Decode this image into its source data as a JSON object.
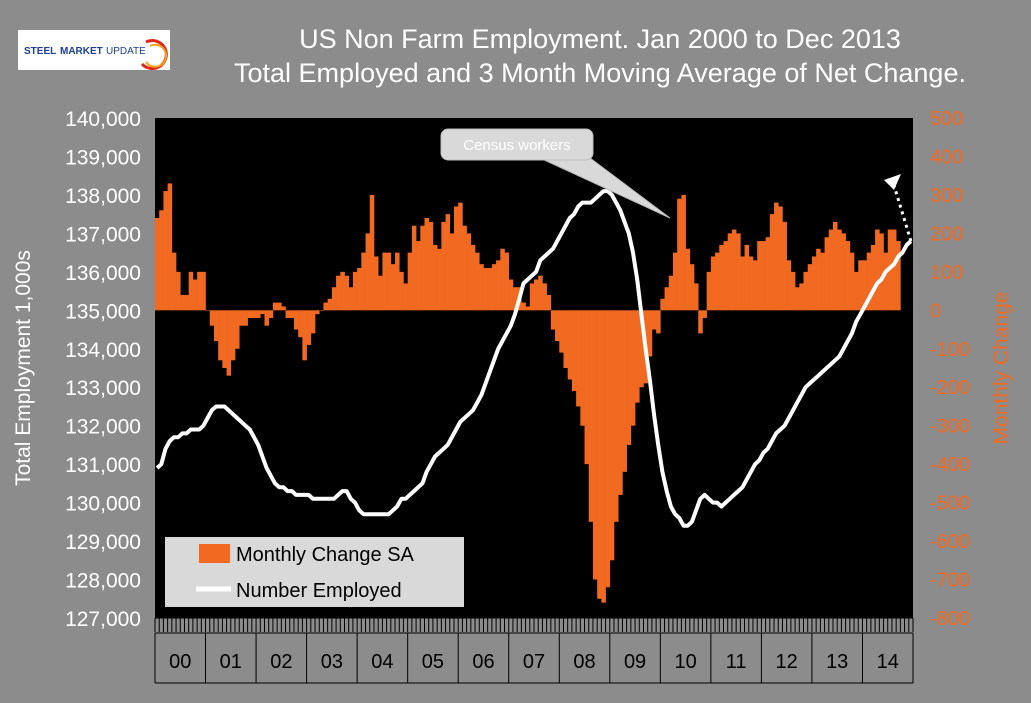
{
  "logo": {
    "text": "STEEL MARKET UPDATE"
  },
  "chart_data": {
    "type": "bar+line",
    "title": "US Non Farm Employment. Jan 2000 to Dec 2013",
    "subtitle": "Total Employed and 3 Month Moving Average of Net Change.",
    "ylabel_left": "Total Employment 1,000s",
    "ylabel_right": "Monthly Change",
    "ylim_left": [
      127000,
      140000
    ],
    "ylim_right": [
      -800,
      500
    ],
    "yticks_left": [
      "127,000",
      "128,000",
      "129,000",
      "130,000",
      "131,000",
      "132,000",
      "133,000",
      "134,000",
      "135,000",
      "136,000",
      "137,000",
      "138,000",
      "139,000",
      "140,000"
    ],
    "yticks_right": [
      "-800",
      "-700",
      "-600",
      "-500",
      "-400",
      "-300",
      "-200",
      "-100",
      "0",
      "100",
      "200",
      "300",
      "400",
      "500"
    ],
    "xticks": [
      "00",
      "01",
      "02",
      "03",
      "04",
      "05",
      "06",
      "07",
      "08",
      "09",
      "10",
      "11",
      "12",
      "13",
      "14"
    ],
    "legend": {
      "bar_label": "Monthly Change SA",
      "line_label": "Number Employed",
      "placement": "bottom-left"
    },
    "annotation": {
      "text": "Census workers"
    },
    "colors": {
      "bars": "#f26a21",
      "line": "#ffffff",
      "plot_bg": "#000000",
      "page_bg": "#8c8c8c",
      "right_axis": "#f26a21"
    },
    "series": [
      {
        "name": "Monthly Change SA",
        "axis": "right",
        "values": [
          240,
          260,
          310,
          330,
          150,
          100,
          40,
          40,
          100,
          80,
          100,
          100,
          0,
          -40,
          -80,
          -130,
          -150,
          -170,
          -130,
          -100,
          -40,
          -40,
          -20,
          -20,
          -20,
          -10,
          -40,
          -20,
          20,
          20,
          10,
          -20,
          -20,
          -50,
          -70,
          -130,
          -90,
          -60,
          -10,
          0,
          20,
          30,
          60,
          90,
          100,
          90,
          60,
          100,
          110,
          150,
          200,
          300,
          140,
          90,
          150,
          150,
          120,
          150,
          100,
          70,
          150,
          220,
          180,
          220,
          240,
          230,
          170,
          160,
          230,
          250,
          200,
          270,
          280,
          220,
          200,
          170,
          150,
          120,
          110,
          110,
          120,
          130,
          160,
          150,
          80,
          60,
          60,
          20,
          10,
          70,
          80,
          90,
          70,
          40,
          -50,
          -80,
          -110,
          -150,
          -180,
          -210,
          -250,
          -300,
          -400,
          -550,
          -700,
          -750,
          -760,
          -720,
          -650,
          -550,
          -480,
          -420,
          -350,
          -300,
          -240,
          -200,
          -190,
          -120,
          -50,
          -60,
          30,
          60,
          90,
          150,
          290,
          300,
          160,
          120,
          70,
          -60,
          -20,
          100,
          140,
          150,
          170,
          180,
          200,
          210,
          200,
          140,
          170,
          140,
          130,
          180,
          180,
          190,
          250,
          280,
          270,
          230,
          130,
          100,
          60,
          70,
          100,
          120,
          140,
          160,
          150,
          190,
          210,
          230,
          210,
          200,
          180,
          150,
          100,
          130,
          130,
          150,
          170,
          210,
          200,
          150,
          210,
          210,
          180
        ]
      },
      {
        "name": "Number Employed",
        "axis": "left",
        "values": [
          130900,
          131000,
          131400,
          131600,
          131700,
          131700,
          131800,
          131800,
          131900,
          131900,
          131900,
          132000,
          132200,
          132400,
          132500,
          132500,
          132500,
          132400,
          132300,
          132200,
          132100,
          132000,
          131900,
          131700,
          131500,
          131200,
          130900,
          130700,
          130500,
          130400,
          130400,
          130300,
          130300,
          130200,
          130200,
          130200,
          130200,
          130100,
          130100,
          130100,
          130100,
          130100,
          130100,
          130200,
          130300,
          130300,
          130100,
          130000,
          129800,
          129700,
          129700,
          129700,
          129700,
          129700,
          129700,
          129700,
          129800,
          129900,
          130100,
          130100,
          130200,
          130300,
          130400,
          130500,
          130800,
          131000,
          131200,
          131300,
          131400,
          131500,
          131700,
          131900,
          132100,
          132200,
          132300,
          132400,
          132600,
          132800,
          133100,
          133400,
          133700,
          134000,
          134200,
          134400,
          134600,
          134900,
          135300,
          135700,
          135800,
          135900,
          136000,
          136300,
          136400,
          136500,
          136600,
          136800,
          137000,
          137200,
          137400,
          137500,
          137700,
          137800,
          137800,
          137800,
          137900,
          138000,
          138100,
          138100,
          138000,
          137800,
          137600,
          137300,
          137000,
          136500,
          135800,
          134900,
          134000,
          133200,
          132300,
          131500,
          130800,
          130300,
          129900,
          129700,
          129600,
          129400,
          129400,
          129500,
          129800,
          130100,
          130200,
          130100,
          130000,
          130000,
          129900,
          130000,
          130100,
          130200,
          130300,
          130400,
          130600,
          130800,
          131000,
          131100,
          131300,
          131400,
          131600,
          131800,
          131900,
          132000,
          132200,
          132400,
          132600,
          132800,
          133000,
          133100,
          133200,
          133300,
          133400,
          133500,
          133600,
          133700,
          133800,
          134000,
          134200,
          134400,
          134700,
          134900,
          135100,
          135300,
          135500,
          135700,
          135800,
          136000,
          136100,
          136200,
          136400,
          136500,
          136700,
          136800
        ]
      }
    ]
  }
}
